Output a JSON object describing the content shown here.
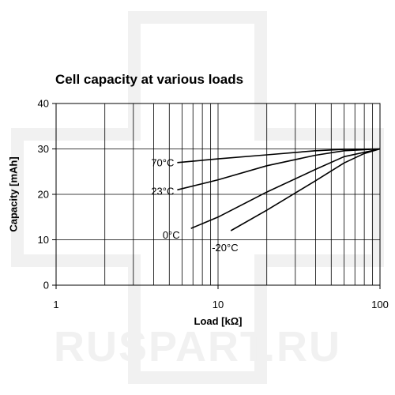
{
  "watermark": {
    "text": "RUSPART.RU",
    "color": "#f1f1f1"
  },
  "chart_data": {
    "type": "line",
    "title": "Cell capacity at various loads",
    "xlabel": "Load [kΩ]",
    "ylabel": "Capacity [mAh]",
    "x_scale": "log",
    "xlim": [
      1,
      100
    ],
    "ylim": [
      0,
      40
    ],
    "x_ticks": [
      "1",
      "10",
      "100"
    ],
    "y_ticks": [
      "0",
      "10",
      "20",
      "30",
      "40"
    ],
    "grid": true,
    "series": [
      {
        "name": "70°C",
        "x": [
          5.6,
          10,
          20,
          40,
          60,
          100
        ],
        "y": [
          27,
          27.8,
          28.7,
          29.6,
          29.9,
          30
        ]
      },
      {
        "name": "23°C",
        "x": [
          5.6,
          10,
          20,
          40,
          60,
          100
        ],
        "y": [
          21,
          23.2,
          26.3,
          28.6,
          29.6,
          30
        ]
      },
      {
        "name": "0°C",
        "x": [
          6.8,
          10,
          20,
          40,
          60,
          100
        ],
        "y": [
          12.5,
          15,
          20.5,
          25.5,
          28.3,
          30
        ]
      },
      {
        "name": "-20°C",
        "x": [
          12,
          20,
          40,
          60,
          80,
          100
        ],
        "y": [
          12,
          16.5,
          23,
          26.9,
          29,
          30
        ]
      }
    ]
  }
}
